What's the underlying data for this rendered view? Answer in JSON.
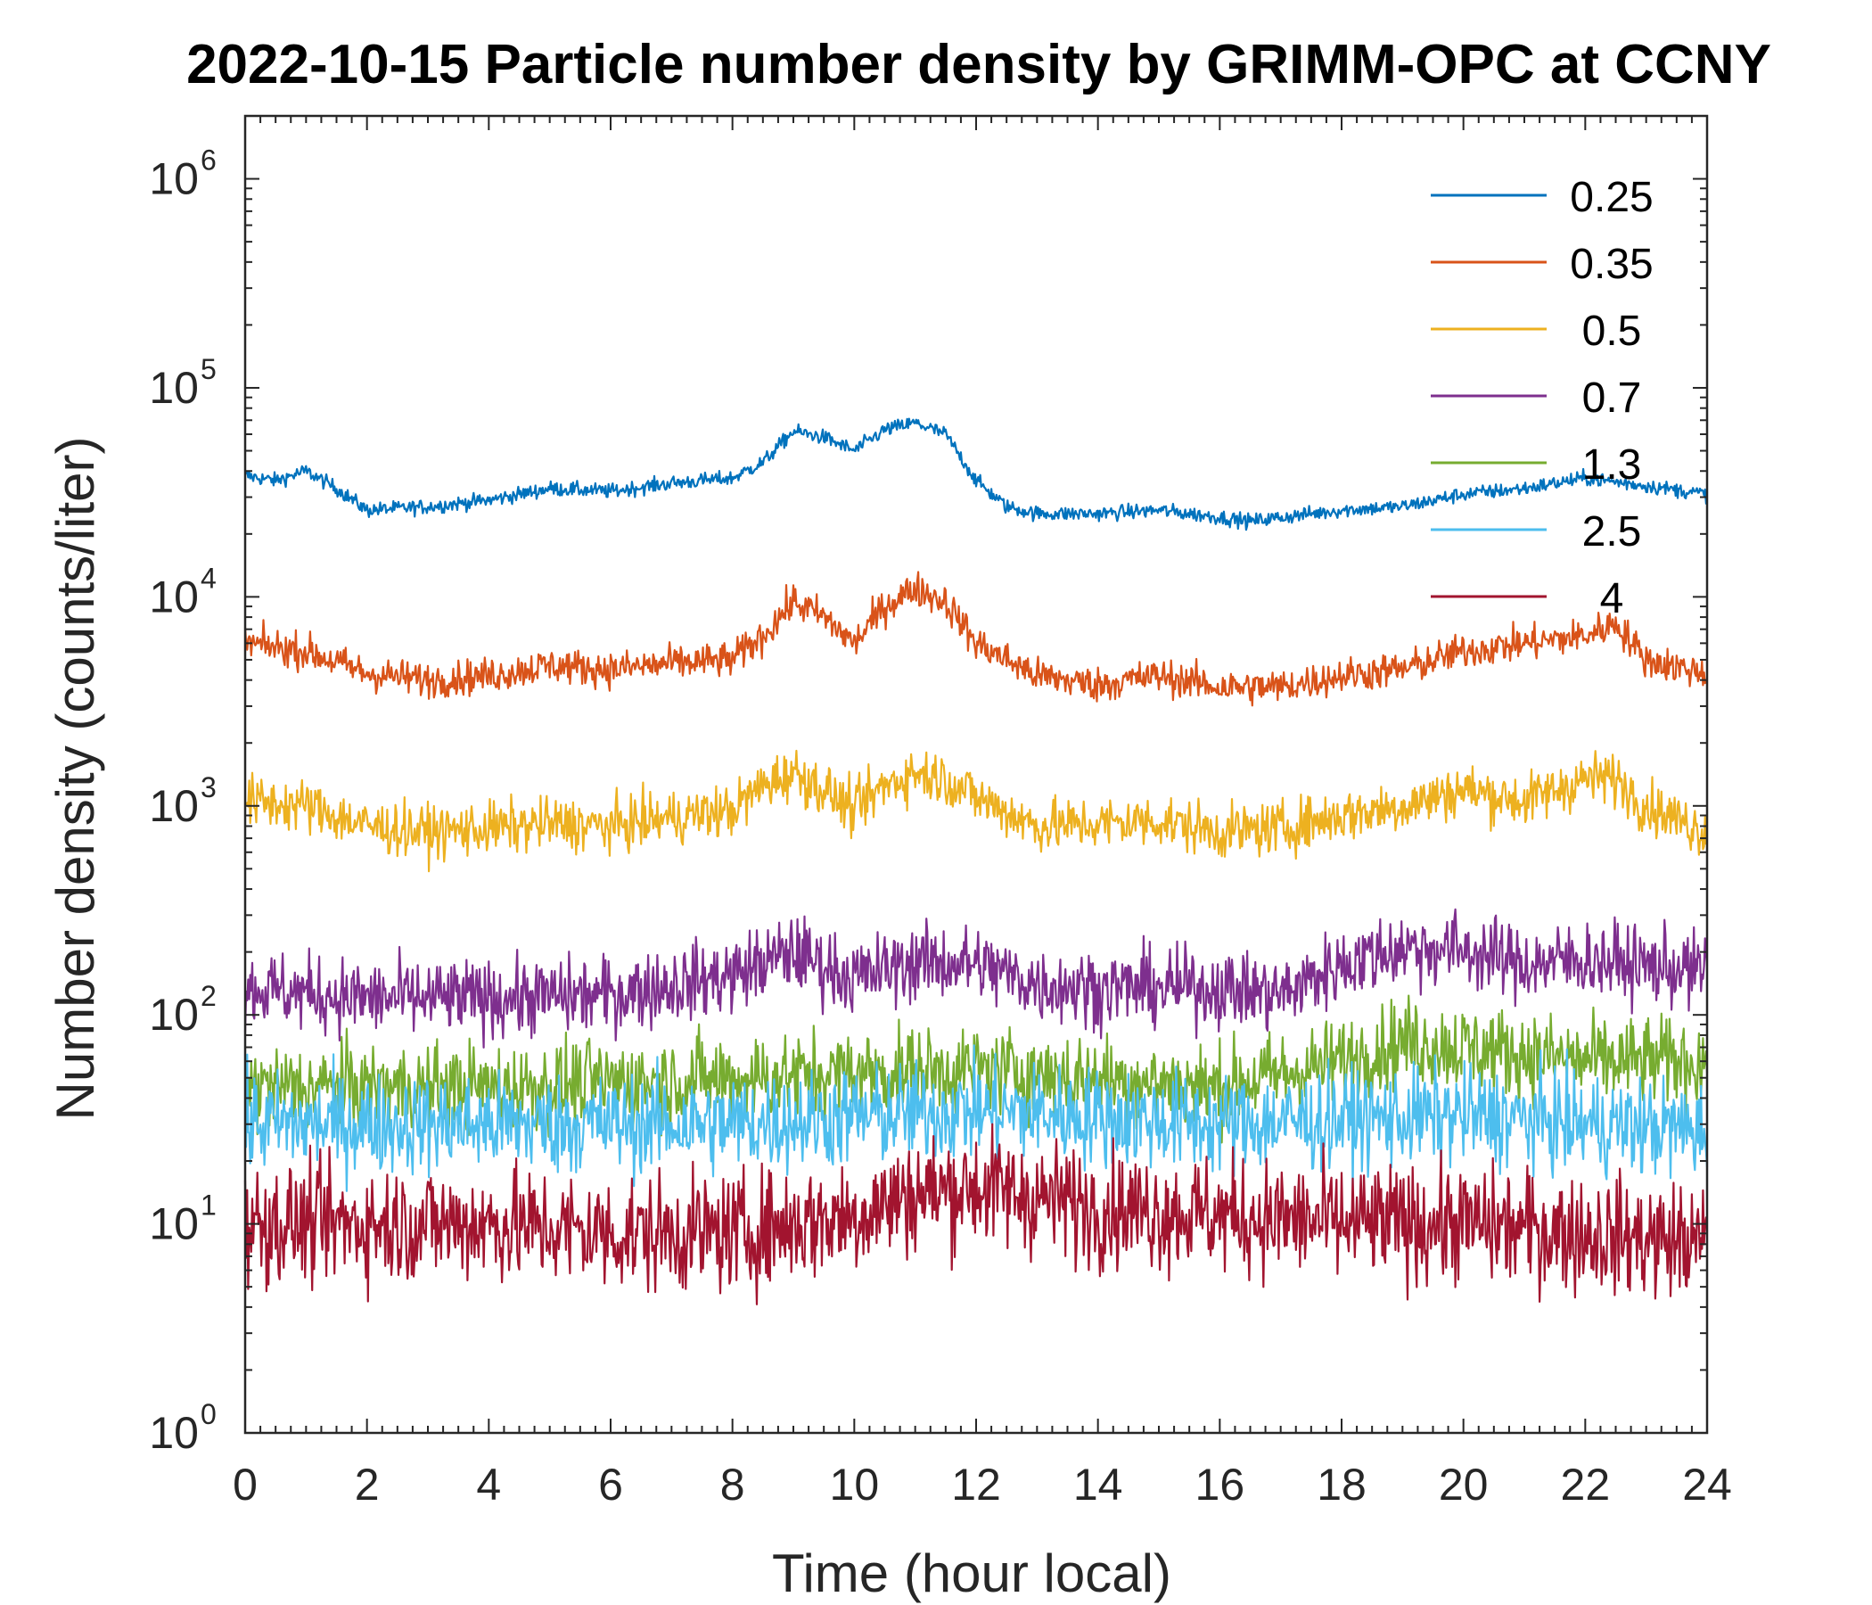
{
  "chart_data": {
    "type": "line",
    "title": "2022-10-15 Particle number density by GRIMM-OPC at CCNY",
    "xlabel": "Time (hour local)",
    "ylabel": "Number density (counts/liter)",
    "xlim": [
      0,
      24
    ],
    "ylim": [
      1,
      2000000
    ],
    "yscale": "log",
    "grid": false,
    "legend_position": "top-right",
    "x_ticks": [
      "0",
      "2",
      "4",
      "6",
      "8",
      "10",
      "12",
      "14",
      "16",
      "18",
      "20",
      "22",
      "24"
    ],
    "y_ticks": [
      {
        "base": "10",
        "exp": "0"
      },
      {
        "base": "10",
        "exp": "1"
      },
      {
        "base": "10",
        "exp": "2"
      },
      {
        "base": "10",
        "exp": "3"
      },
      {
        "base": "10",
        "exp": "4"
      },
      {
        "base": "10",
        "exp": "5"
      },
      {
        "base": "10",
        "exp": "6"
      }
    ],
    "series": [
      {
        "name": "0.25",
        "color": "#0072BD",
        "noise": 0.025,
        "x": [
          0,
          0.5,
          1,
          1.5,
          2,
          3,
          4,
          5,
          6,
          7,
          8,
          8.5,
          9,
          9.5,
          10,
          10.5,
          11,
          11.5,
          12,
          12.5,
          13,
          14,
          15,
          16,
          16.5,
          17,
          18,
          19,
          20,
          21,
          22,
          23,
          24
        ],
        "values": [
          38000,
          36000,
          40000,
          33000,
          26000,
          27000,
          29000,
          33000,
          32000,
          35000,
          37000,
          44000,
          62000,
          58000,
          50000,
          63000,
          68000,
          60000,
          36000,
          27000,
          25000,
          25000,
          26000,
          24000,
          23000,
          24000,
          26000,
          27000,
          31000,
          33000,
          37000,
          34000,
          31000
        ]
      },
      {
        "name": "0.35",
        "color": "#D95319",
        "noise": 0.06,
        "x": [
          0,
          1,
          2,
          3,
          4,
          5,
          6,
          7,
          8,
          8.5,
          9,
          9.5,
          10,
          10.5,
          11,
          11.5,
          12,
          13,
          14,
          15,
          16,
          17,
          18,
          19,
          20,
          21,
          22,
          22.5,
          23,
          24
        ],
        "values": [
          6000,
          5500,
          4300,
          4000,
          4200,
          4700,
          4500,
          4800,
          5000,
          6500,
          9500,
          8000,
          6000,
          9000,
          11000,
          9500,
          6000,
          4200,
          3800,
          4200,
          3700,
          3700,
          4200,
          4500,
          5500,
          6000,
          6500,
          7500,
          5000,
          4300
        ]
      },
      {
        "name": "0.5",
        "color": "#EDB120",
        "noise": 0.09,
        "x": [
          0,
          1,
          2,
          3,
          4,
          5,
          6,
          7,
          8,
          8.5,
          9,
          9.5,
          10,
          10.5,
          11,
          11.5,
          12,
          13,
          14,
          15,
          16,
          17,
          18,
          19,
          20,
          21,
          22,
          22.5,
          23,
          24
        ],
        "values": [
          1050,
          1000,
          800,
          750,
          780,
          820,
          800,
          880,
          950,
          1250,
          1450,
          1200,
          950,
          1250,
          1450,
          1350,
          1100,
          800,
          820,
          850,
          750,
          780,
          900,
          1000,
          1200,
          1050,
          1350,
          1350,
          1000,
          750
        ]
      },
      {
        "name": "0.7",
        "color": "#7E2F8E",
        "noise": 0.13,
        "x": [
          0,
          2,
          4,
          6,
          8,
          9,
          10,
          11,
          12,
          13,
          14,
          16,
          17,
          18,
          19,
          20,
          21,
          22,
          24
        ],
        "values": [
          135,
          120,
          120,
          125,
          155,
          200,
          150,
          180,
          175,
          140,
          135,
          135,
          125,
          175,
          210,
          205,
          175,
          185,
          160
        ]
      },
      {
        "name": "1.3",
        "color": "#77AC30",
        "noise": 0.15,
        "x": [
          0,
          4,
          8,
          12,
          16,
          18,
          19,
          20,
          22,
          24
        ],
        "values": [
          45,
          45,
          50,
          55,
          45,
          60,
          75,
          70,
          60,
          60
        ]
      },
      {
        "name": "2.5",
        "color": "#4DBEEE",
        "noise": 0.17,
        "x": [
          0,
          4,
          8,
          12,
          16,
          20,
          22,
          24
        ],
        "values": [
          30,
          30,
          30,
          35,
          30,
          33,
          30,
          28
        ]
      },
      {
        "name": "4",
        "color": "#A2142F",
        "noise": 0.2,
        "x": [
          0,
          2,
          4,
          6,
          8,
          10,
          11,
          12,
          14,
          16,
          18,
          20,
          22,
          24
        ],
        "values": [
          10,
          10,
          10,
          9,
          9,
          11,
          14,
          15,
          12,
          11,
          10,
          10,
          9,
          8
        ]
      }
    ]
  }
}
